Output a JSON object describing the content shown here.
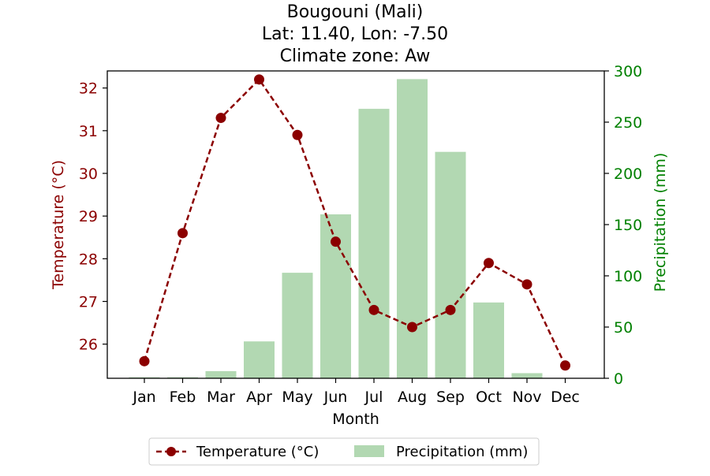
{
  "title_lines": [
    "Bougouni (Mali)",
    "Lat: 11.40, Lon: -7.50",
    "Climate zone: Aw"
  ],
  "colors": {
    "temperature": "#8b0000",
    "precipitation_bar": "#b2d8b2",
    "precipitation_axis": "#008000",
    "axis": "#000000"
  },
  "chart_data": {
    "type": "bar",
    "categories": [
      "Jan",
      "Feb",
      "Mar",
      "Apr",
      "May",
      "Jun",
      "Jul",
      "Aug",
      "Sep",
      "Oct",
      "Nov",
      "Dec"
    ],
    "xlabel": "Month",
    "series": [
      {
        "name": "Temperature (°C)",
        "type": "line",
        "axis": "left",
        "line_style": "dashed",
        "marker": "circle",
        "values": [
          25.6,
          28.6,
          31.3,
          32.2,
          30.9,
          28.4,
          26.8,
          26.4,
          26.8,
          27.9,
          27.4,
          25.5
        ]
      },
      {
        "name": "Precipitation (mm)",
        "type": "bar",
        "axis": "right",
        "values": [
          1,
          1,
          7,
          36,
          103,
          160,
          263,
          292,
          221,
          74,
          5,
          0
        ]
      }
    ],
    "y_left": {
      "label": "Temperature (°C)",
      "range": [
        25.2,
        32.4
      ],
      "ticks": [
        26,
        27,
        28,
        29,
        30,
        31,
        32
      ]
    },
    "y_right": {
      "label": "Precipitation (mm)",
      "range": [
        0,
        300
      ],
      "ticks": [
        0,
        50,
        100,
        150,
        200,
        250,
        300
      ]
    },
    "grid": false,
    "legend_position": "bottom-center"
  }
}
